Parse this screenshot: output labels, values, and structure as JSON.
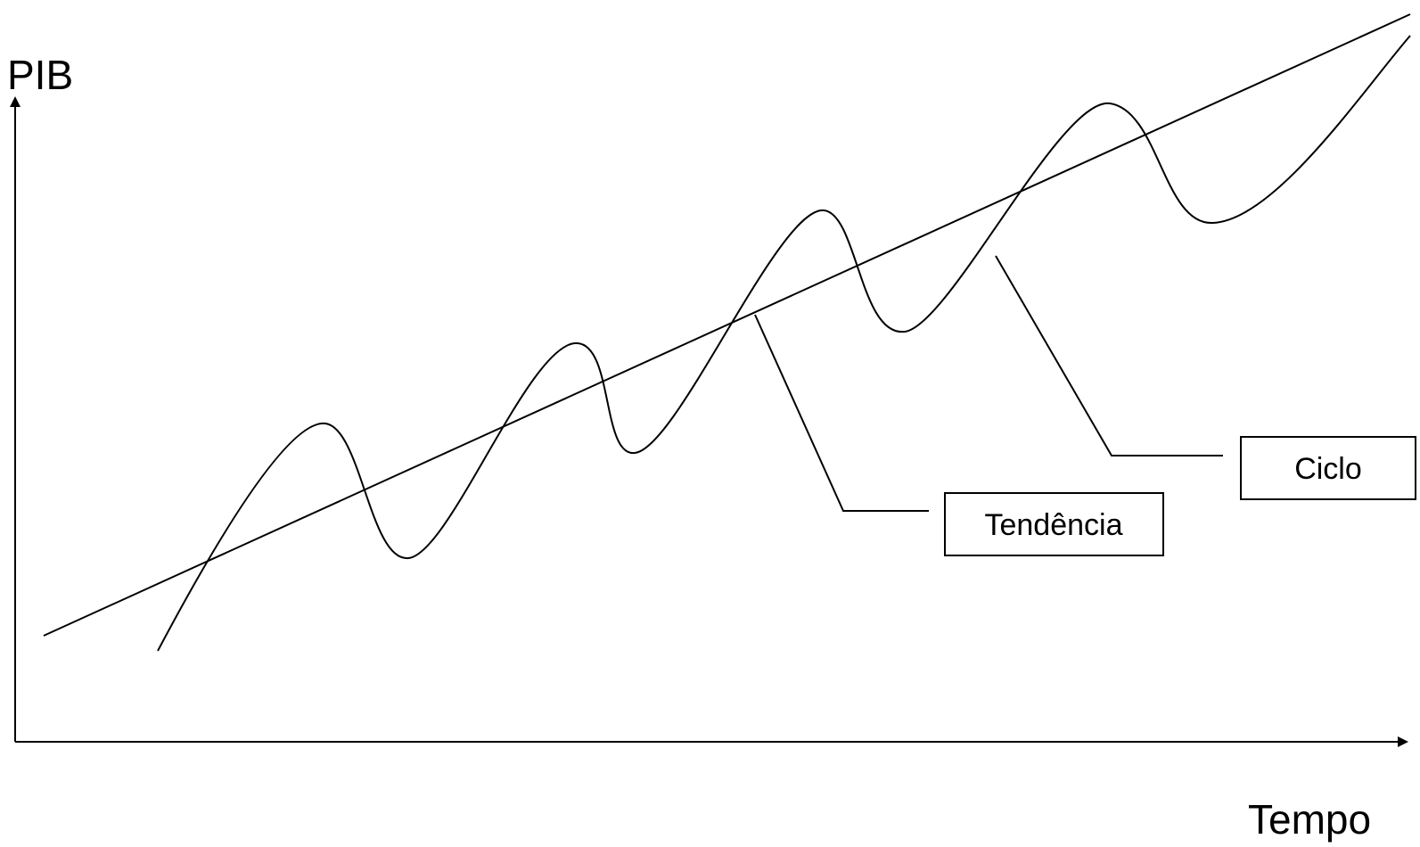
{
  "axes": {
    "y_label": "PIB",
    "x_label": "Tempo"
  },
  "series": {
    "trend_name": "Tendência",
    "cycle_name": "Ciclo"
  },
  "colors": {
    "line": "#000000",
    "background": "#ffffff"
  }
}
